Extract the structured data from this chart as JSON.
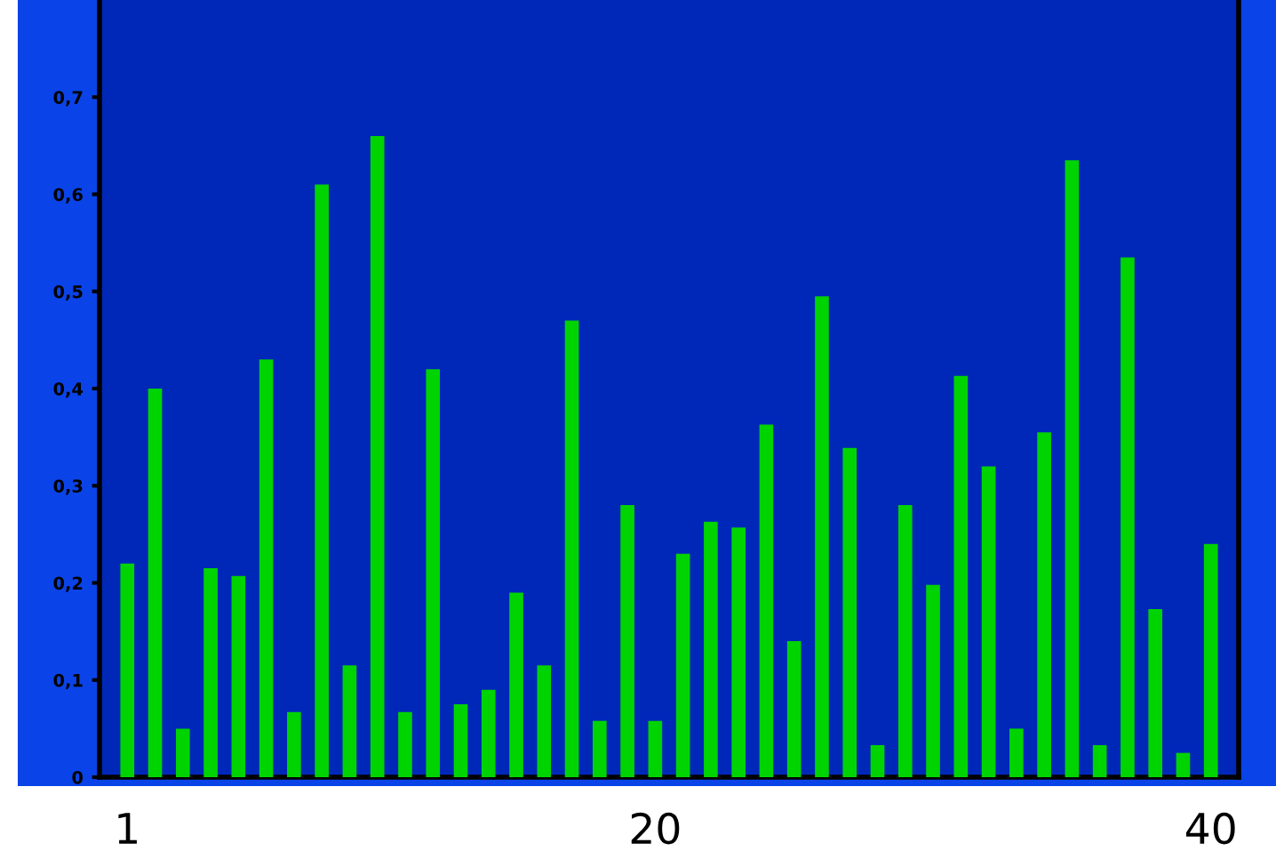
{
  "chart_data": {
    "type": "bar",
    "categories": [
      "1",
      null,
      null,
      null,
      null,
      null,
      null,
      null,
      null,
      null,
      null,
      null,
      null,
      null,
      null,
      null,
      null,
      null,
      null,
      "20",
      null,
      null,
      null,
      null,
      null,
      null,
      null,
      null,
      null,
      null,
      null,
      null,
      null,
      null,
      null,
      null,
      null,
      null,
      null,
      "40"
    ],
    "values": [
      0.22,
      0.4,
      0.05,
      0.215,
      0.207,
      0.43,
      0.067,
      0.61,
      0.115,
      0.66,
      0.067,
      0.42,
      0.075,
      0.09,
      0.19,
      0.115,
      0.47,
      0.058,
      0.28,
      0.058,
      0.23,
      0.263,
      0.257,
      0.363,
      0.14,
      0.495,
      0.339,
      0.033,
      0.28,
      0.198,
      0.413,
      0.32,
      0.05,
      0.355,
      0.635,
      0.033,
      0.535,
      0.173,
      0.025,
      0.24
    ],
    "color": "#00d400",
    "ylim": [
      0,
      0.8
    ],
    "yticks": [
      {
        "value": 0,
        "label": "0"
      },
      {
        "value": 0.1,
        "label": "0,1"
      },
      {
        "value": 0.2,
        "label": "0,2"
      },
      {
        "value": 0.3,
        "label": "0,3"
      },
      {
        "value": 0.4,
        "label": "0,4"
      },
      {
        "value": 0.5,
        "label": "0,5"
      },
      {
        "value": 0.6,
        "label": "0,6"
      },
      {
        "value": 0.7,
        "label": "0,7"
      }
    ]
  }
}
